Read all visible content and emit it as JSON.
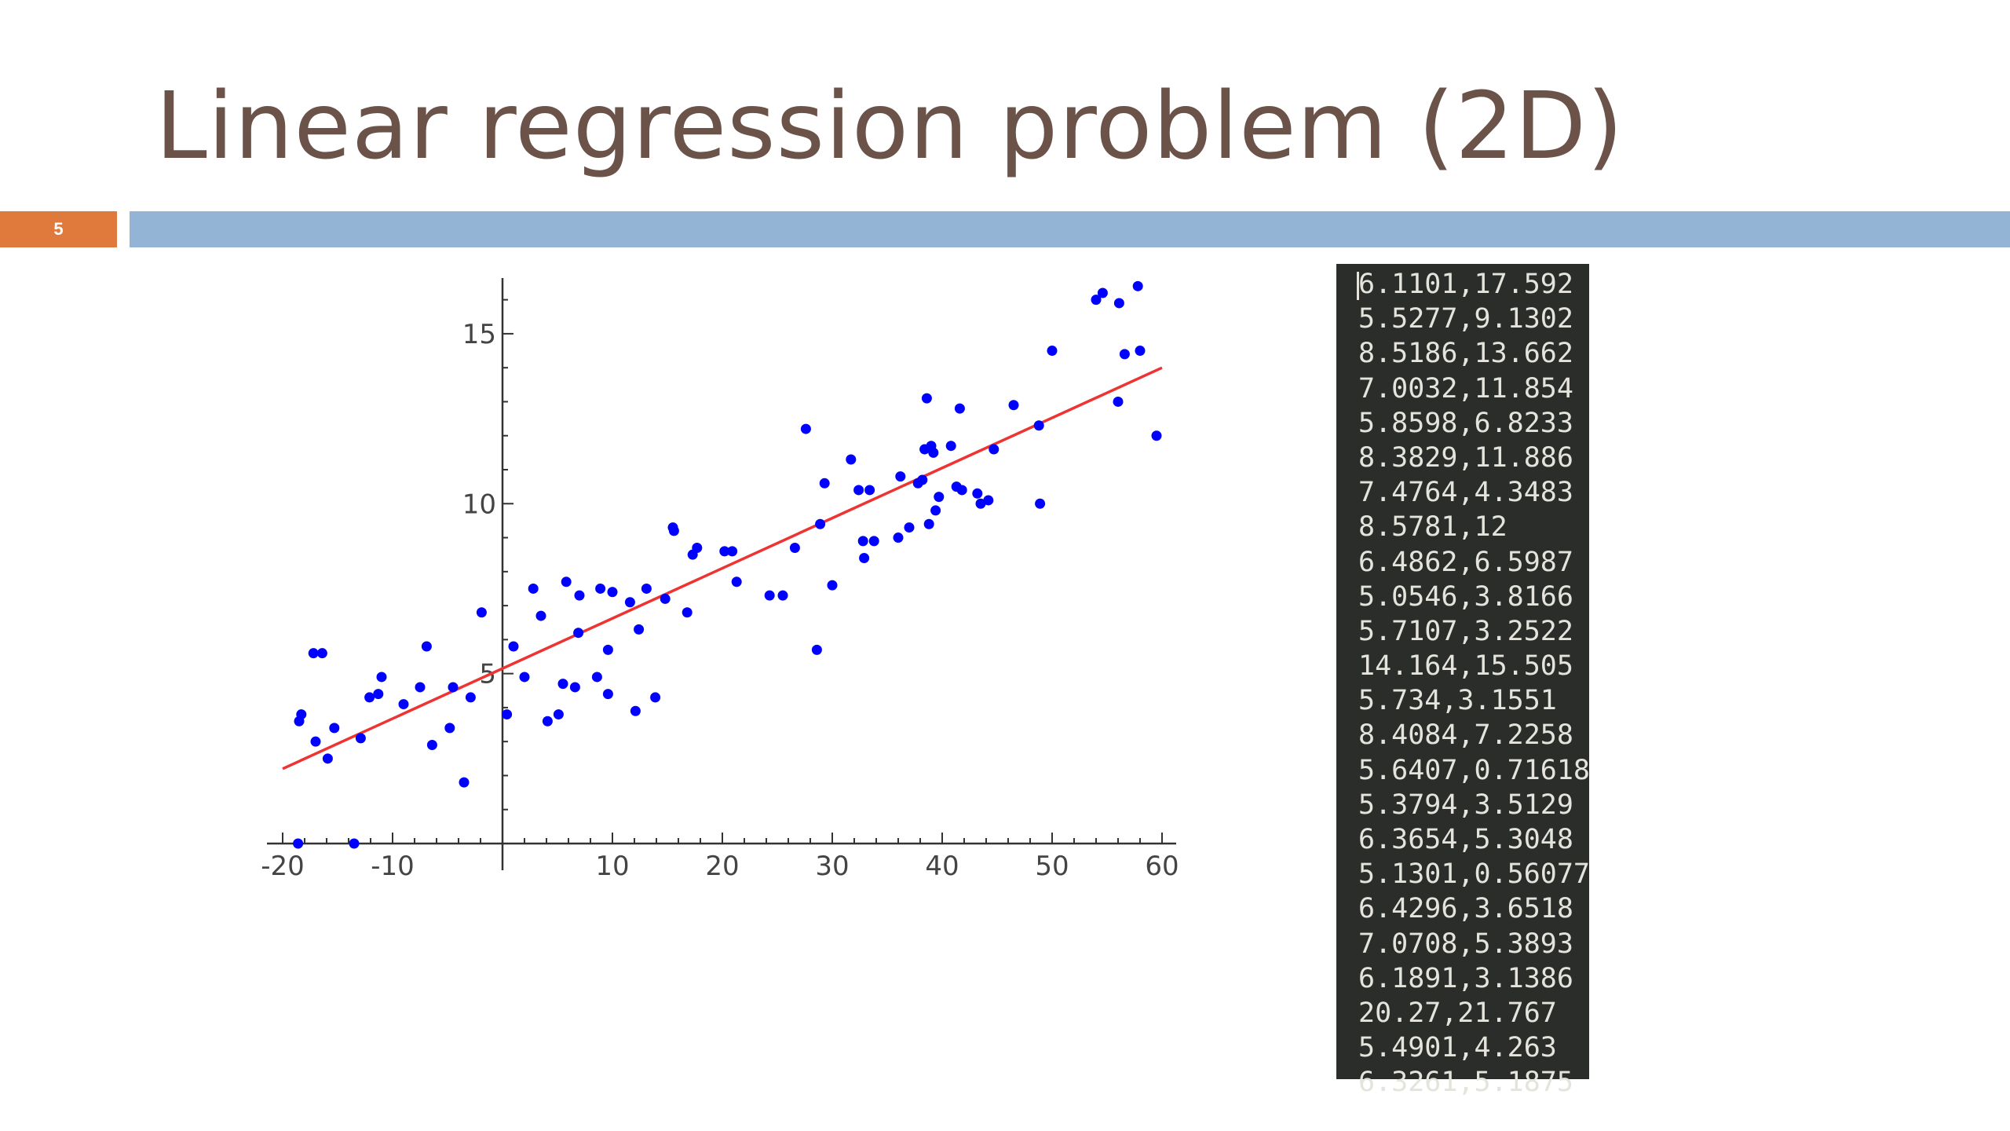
{
  "slide": {
    "title": "Linear regression problem (2D)",
    "number": "5",
    "accent_color": "#df7a3c",
    "rule_color": "#94b4d6",
    "title_color": "#6b5349"
  },
  "chart_data": {
    "type": "scatter",
    "title": "",
    "xlabel": "",
    "ylabel": "",
    "xlim": [
      -20,
      60
    ],
    "ylim": [
      0,
      16.5
    ],
    "x_ticks": [
      -20,
      -10,
      10,
      20,
      30,
      40,
      50,
      60
    ],
    "x_tick_labels": [
      "-20",
      "-10",
      "10",
      "20",
      "30",
      "40",
      "50",
      "60"
    ],
    "y_ticks": [
      5,
      10,
      15
    ],
    "y_tick_labels": [
      "5",
      "10",
      "15"
    ],
    "grid": false,
    "series": [
      {
        "kind": "points",
        "color": "#0000ff",
        "points": [
          [
            -18.5,
            3.6
          ],
          [
            -18.3,
            3.8
          ],
          [
            -17.2,
            5.6
          ],
          [
            -16.4,
            5.6
          ],
          [
            -17.0,
            3.0
          ],
          [
            -15.9,
            2.5
          ],
          [
            -15.3,
            3.4
          ],
          [
            -13.5,
            0.0
          ],
          [
            -12.9,
            3.1
          ],
          [
            -12.1,
            4.3
          ],
          [
            -11.3,
            4.4
          ],
          [
            -11.0,
            4.9
          ],
          [
            -9.0,
            4.1
          ],
          [
            -7.5,
            4.6
          ],
          [
            -6.9,
            5.8
          ],
          [
            -6.4,
            2.9
          ],
          [
            -4.8,
            3.4
          ],
          [
            -4.5,
            4.6
          ],
          [
            -3.5,
            1.8
          ],
          [
            -2.9,
            4.3
          ],
          [
            -1.9,
            6.8
          ],
          [
            0.4,
            3.8
          ],
          [
            1.0,
            5.8
          ],
          [
            2.0,
            4.9
          ],
          [
            2.8,
            7.5
          ],
          [
            3.5,
            6.7
          ],
          [
            4.1,
            3.6
          ],
          [
            5.1,
            3.8
          ],
          [
            5.5,
            4.7
          ],
          [
            5.8,
            7.7
          ],
          [
            6.6,
            4.6
          ],
          [
            6.9,
            6.2
          ],
          [
            7.0,
            7.3
          ],
          [
            8.6,
            4.9
          ],
          [
            8.9,
            7.5
          ],
          [
            9.6,
            5.7
          ],
          [
            9.6,
            4.4
          ],
          [
            10.0,
            7.4
          ],
          [
            11.6,
            7.1
          ],
          [
            12.1,
            3.9
          ],
          [
            12.4,
            6.3
          ],
          [
            13.1,
            7.5
          ],
          [
            13.9,
            4.3
          ],
          [
            14.8,
            7.2
          ],
          [
            15.5,
            9.3
          ],
          [
            15.6,
            9.2
          ],
          [
            16.8,
            6.8
          ],
          [
            17.3,
            8.5
          ],
          [
            17.7,
            8.7
          ],
          [
            20.2,
            8.6
          ],
          [
            20.9,
            8.6
          ],
          [
            21.3,
            7.7
          ],
          [
            24.3,
            7.3
          ],
          [
            25.5,
            7.3
          ],
          [
            26.6,
            8.7
          ],
          [
            27.6,
            12.2
          ],
          [
            28.6,
            5.7
          ],
          [
            28.9,
            9.4
          ],
          [
            29.3,
            10.6
          ],
          [
            30.0,
            7.6
          ],
          [
            31.7,
            11.3
          ],
          [
            32.4,
            10.4
          ],
          [
            32.8,
            8.9
          ],
          [
            32.9,
            8.4
          ],
          [
            33.4,
            10.4
          ],
          [
            33.8,
            8.9
          ],
          [
            36.0,
            9.0
          ],
          [
            36.2,
            10.8
          ],
          [
            37.0,
            9.3
          ],
          [
            37.8,
            10.6
          ],
          [
            38.2,
            10.7
          ],
          [
            38.4,
            11.6
          ],
          [
            38.6,
            13.1
          ],
          [
            38.8,
            9.4
          ],
          [
            39.0,
            11.7
          ],
          [
            39.2,
            11.5
          ],
          [
            39.4,
            9.8
          ],
          [
            39.7,
            10.2
          ],
          [
            40.8,
            11.7
          ],
          [
            41.3,
            10.5
          ],
          [
            41.6,
            12.8
          ],
          [
            41.8,
            10.4
          ],
          [
            43.2,
            10.3
          ],
          [
            43.5,
            10.0
          ],
          [
            44.2,
            10.1
          ],
          [
            44.7,
            11.6
          ],
          [
            46.5,
            12.9
          ],
          [
            48.8,
            12.3
          ],
          [
            48.9,
            10.0
          ],
          [
            50.0,
            14.5
          ],
          [
            54.0,
            16.0
          ],
          [
            54.6,
            16.2
          ],
          [
            56.0,
            13.0
          ],
          [
            56.1,
            15.9
          ],
          [
            56.6,
            14.4
          ],
          [
            57.8,
            16.4
          ],
          [
            58.0,
            14.5
          ],
          [
            59.5,
            12.0
          ],
          [
            -18.6,
            0.0
          ]
        ]
      },
      {
        "kind": "regression-line",
        "color": "#ee3333",
        "points": [
          [
            -20,
            2.2
          ],
          [
            60,
            14.0
          ]
        ]
      }
    ]
  },
  "data_listing": {
    "lines": [
      "6.1101,17.592",
      "5.5277,9.1302",
      "8.5186,13.662",
      "7.0032,11.854",
      "5.8598,6.8233",
      "8.3829,11.886",
      "7.4764,4.3483",
      "8.5781,12",
      "6.4862,6.5987",
      "5.0546,3.8166",
      "5.7107,3.2522",
      "14.164,15.505",
      "5.734,3.1551",
      "8.4084,7.2258",
      "5.6407,0.71618",
      "5.3794,3.5129",
      "6.3654,5.3048",
      "5.1301,0.56077",
      "6.4296,3.6518",
      "7.0708,5.3893",
      "6.1891,3.1386",
      "20.27,21.767",
      "5.4901,4.263",
      "6.3261,5.1875"
    ]
  }
}
